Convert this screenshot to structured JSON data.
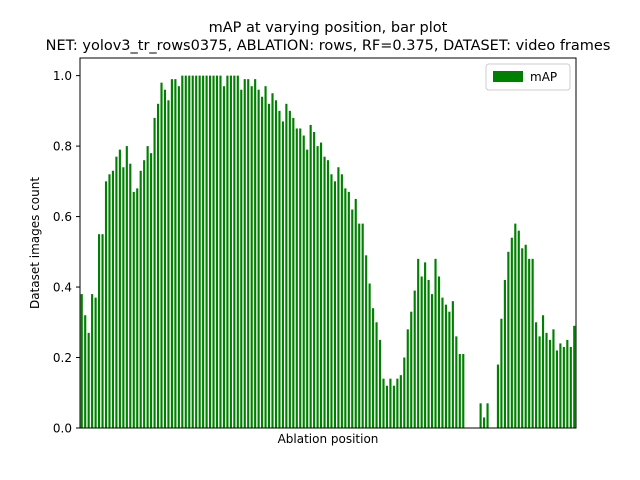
{
  "chart_data": {
    "type": "bar",
    "title": "mAP at varying position, bar plot",
    "subtitle": "NET: yolov3_tr_rows0375, ABLATION: rows, RF=0.375, DATASET: video frames",
    "xlabel": "Ablation position",
    "ylabel": "Dataset images count",
    "ylim": [
      0,
      1.05
    ],
    "yticks": [
      "0.0",
      "0.2",
      "0.4",
      "0.6",
      "0.8",
      "1.0"
    ],
    "x_tick_labels": false,
    "grid": false,
    "legend": {
      "placement": "top-right",
      "entries": [
        "mAP"
      ]
    },
    "bar_color": "#008000",
    "series": [
      {
        "name": "mAP",
        "values": [
          0.38,
          0.32,
          0.27,
          0.38,
          0.37,
          0.55,
          0.55,
          0.7,
          0.72,
          0.73,
          0.77,
          0.79,
          0.74,
          0.8,
          0.75,
          0.67,
          0.68,
          0.73,
          0.76,
          0.8,
          0.78,
          0.88,
          0.92,
          0.98,
          0.96,
          0.93,
          0.99,
          0.99,
          0.97,
          1.0,
          1.0,
          1.0,
          1.0,
          1.0,
          1.0,
          1.0,
          1.0,
          1.0,
          1.0,
          1.0,
          1.0,
          0.97,
          1.0,
          1.0,
          1.0,
          1.0,
          0.96,
          0.99,
          0.99,
          0.97,
          0.99,
          0.96,
          0.94,
          0.97,
          0.92,
          0.95,
          0.93,
          0.9,
          0.87,
          0.92,
          0.9,
          0.88,
          0.85,
          0.85,
          0.83,
          0.79,
          0.86,
          0.84,
          0.8,
          0.81,
          0.77,
          0.76,
          0.72,
          0.7,
          0.74,
          0.72,
          0.68,
          0.67,
          0.62,
          0.65,
          0.58,
          0.58,
          0.49,
          0.41,
          0.34,
          0.3,
          0.25,
          0.14,
          0.12,
          0.14,
          0.12,
          0.14,
          0.15,
          0.2,
          0.28,
          0.33,
          0.39,
          0.48,
          0.43,
          0.47,
          0.42,
          0.38,
          0.48,
          0.43,
          0.37,
          0.35,
          0.33,
          0.36,
          0.26,
          0.21,
          0.21,
          0.0,
          0.0,
          0.0,
          0.0,
          0.07,
          0.03,
          0.07,
          0.0,
          0.0,
          0.18,
          0.31,
          0.42,
          0.5,
          0.54,
          0.58,
          0.56,
          0.51,
          0.52,
          0.48,
          0.48,
          0.3,
          0.26,
          0.32,
          0.27,
          0.25,
          0.28,
          0.22,
          0.24,
          0.23,
          0.25,
          0.23,
          0.29
        ]
      }
    ]
  }
}
